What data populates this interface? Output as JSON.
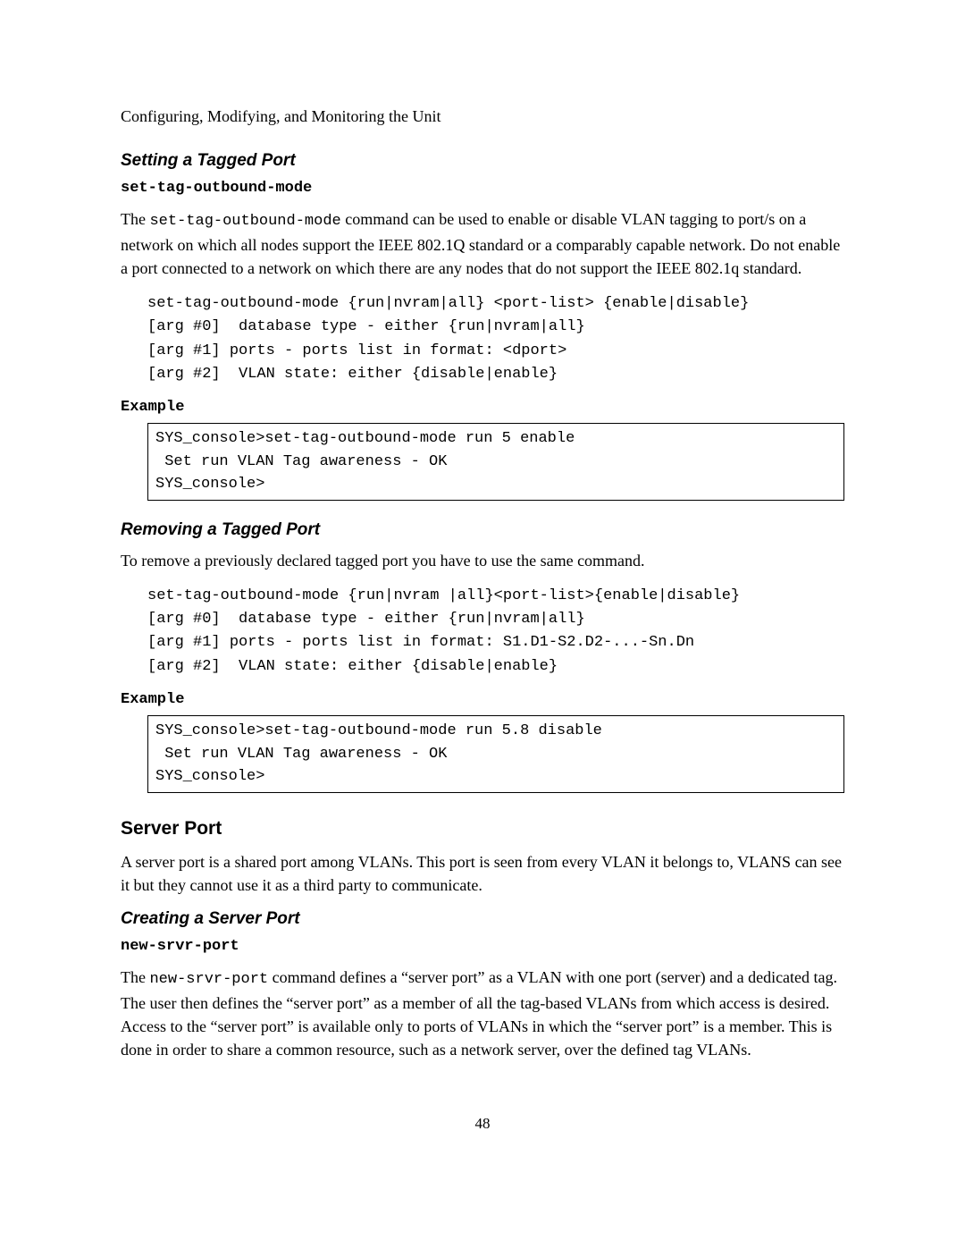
{
  "header": "Configuring, Modifying, and Monitoring the Unit",
  "section1": {
    "title": "Setting a Tagged Port",
    "cmd": "set-tag-outbound-mode",
    "body_pre": "The ",
    "body_mono": "set-tag-outbound-mode",
    "body_post": " command can be used to enable or disable VLAN tagging to port/s on a network on which all nodes support the IEEE 802.1Q standard or a comparably capable network.  Do not enable a port connected to a network on which there are any nodes that do not support the IEEE 802.1q standard.",
    "code": "set-tag-outbound-mode {run|nvram|all} <port-list> {enable|disable}\n[arg #0]  database type - either {run|nvram|all}\n[arg #1] ports - ports list in format: <dport>\n[arg #2]  VLAN state: either {disable|enable}",
    "example_label": "Example",
    "example": "SYS_console>set-tag-outbound-mode run 5 enable\n Set run VLAN Tag awareness - OK\nSYS_console>"
  },
  "section2": {
    "title": "Removing a Tagged Port",
    "body": "To remove a previously declared tagged port you have to use the same command.",
    "code": "set-tag-outbound-mode {run|nvram |all}<port-list>{enable|disable}\n[arg #0]  database type - either {run|nvram|all}\n[arg #1] ports - ports list in format: S1.D1-S2.D2-...-Sn.Dn\n[arg #2]  VLAN state: either {disable|enable}",
    "example_label": "Example",
    "example": "SYS_console>set-tag-outbound-mode run 5.8 disable\n Set run VLAN Tag awareness - OK\nSYS_console>"
  },
  "section3": {
    "title": "Server Port",
    "body": "A server port is a shared port among VLANs.  This port is seen from every VLAN it belongs to, VLANS can see it but they cannot use it as a third party to communicate."
  },
  "section4": {
    "title": "Creating a Server Port",
    "cmd": "new-srvr-port",
    "body_pre": "The ",
    "body_mono": "new-srvr-port",
    "body_post": " command defines a “server port” as a VLAN with one port (server) and a dedicated tag.  The user then defines the “server port” as a member of all the tag-based VLANs from which access is desired.  Access to the “server port” is available only to ports of VLANs in which the “server port” is a member.  This is done in order to share a common resource, such as a network server, over the defined tag VLANs."
  },
  "page_number": "48"
}
